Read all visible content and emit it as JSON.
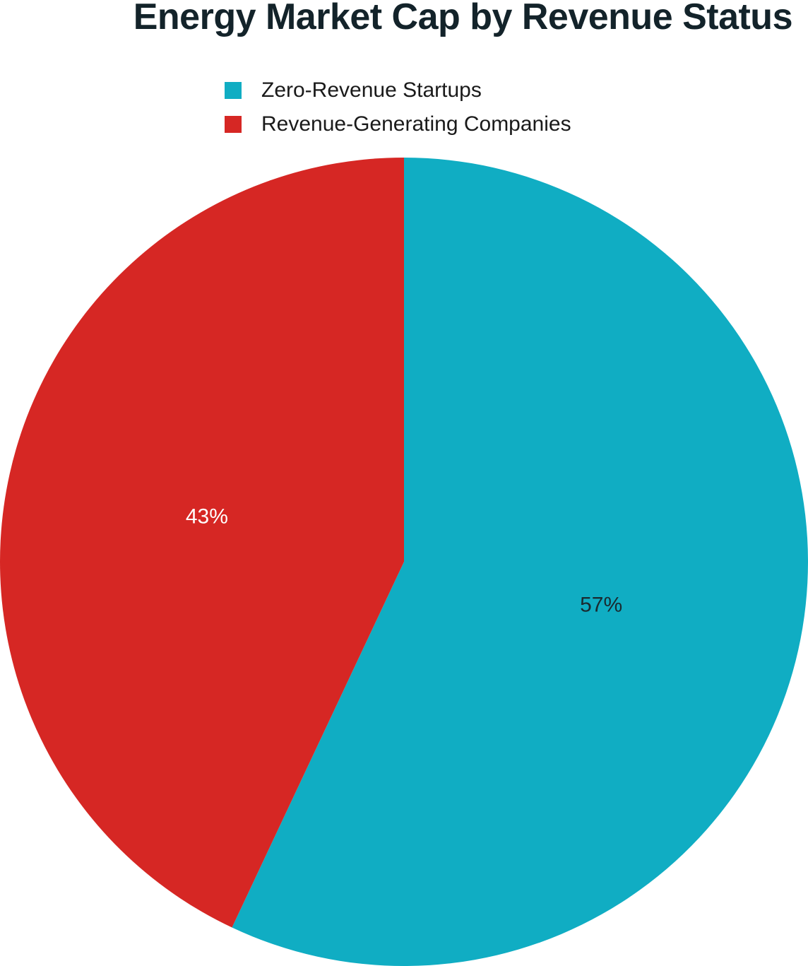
{
  "chart_data": {
    "type": "pie",
    "title": "Energy Market Cap by Revenue Status",
    "legend_placement": "top",
    "slices": [
      {
        "name": "Zero-Revenue Startups",
        "value": 57,
        "label": "57%",
        "color": "#10adc3",
        "label_color": "#1a2a30"
      },
      {
        "name": "Revenue-Generating Companies",
        "value": 43,
        "label": "43%",
        "color": "#d62724",
        "label_color": "#ffffff"
      }
    ]
  }
}
